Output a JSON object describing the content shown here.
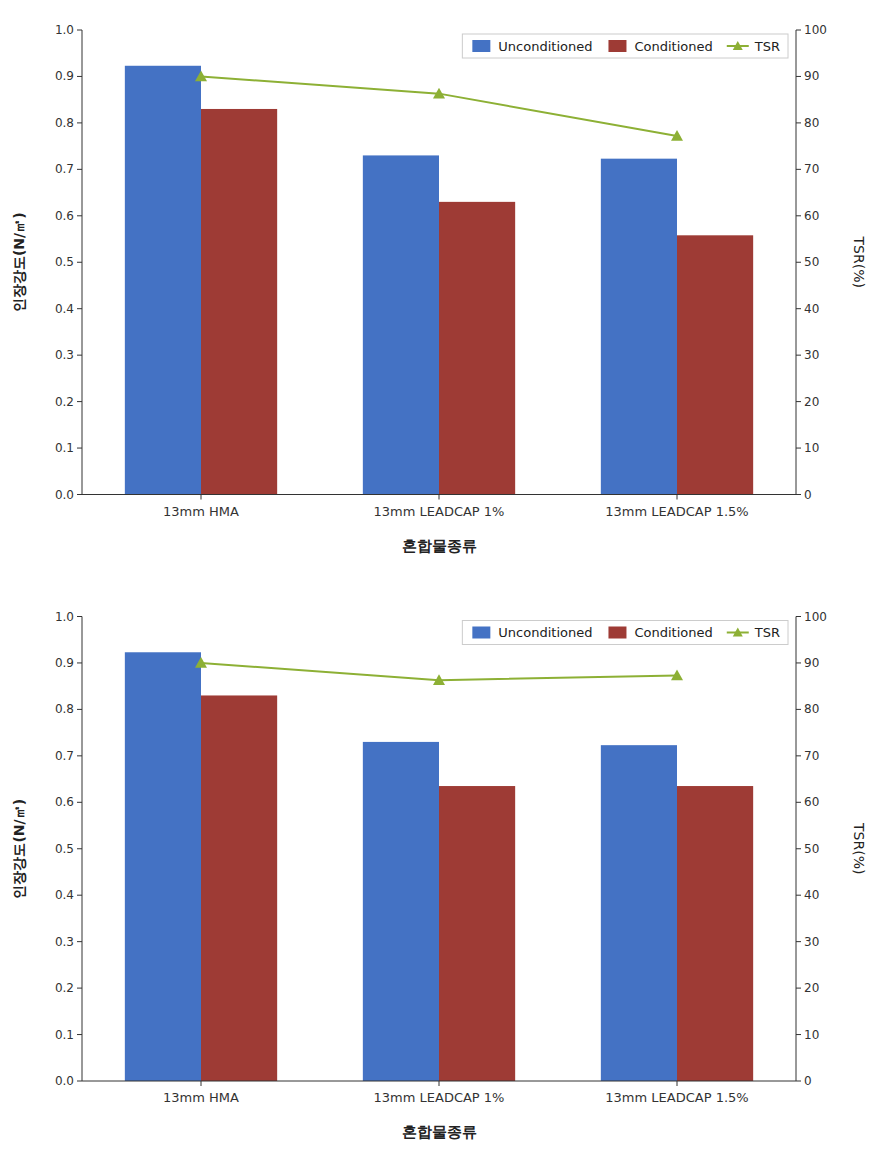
{
  "chart_data": [
    {
      "type": "bar",
      "xlabel": "혼합물종류",
      "ylabel": "인장강도(N/㎡)",
      "y2label": "TSR(%)",
      "categories": [
        "13mm HMA",
        "13mm LEADCAP 1%",
        "13mm LEADCAP 1.5%"
      ],
      "series": [
        {
          "name": "Unconditioned",
          "color": "#4472C4",
          "values": [
            0.923,
            0.73,
            0.723
          ]
        },
        {
          "name": "Conditioned",
          "color": "#9E3B35",
          "values": [
            0.83,
            0.63,
            0.558
          ]
        },
        {
          "name": "TSR",
          "type": "line",
          "axis": "y2",
          "color": "#8DB035",
          "marker": "triangle",
          "values": [
            90.0,
            86.3,
            77.2
          ]
        }
      ],
      "ylim": [
        0.0,
        1.0
      ],
      "yticks": [
        {
          "value": 0.0,
          "label": "0.0"
        },
        0.1,
        0.2,
        0.3,
        0.4,
        0.5,
        0.6,
        0.7,
        0.8,
        0.9,
        {
          "value": 1.0,
          "label": "1.0"
        }
      ],
      "y2lim": [
        0,
        100
      ],
      "y2ticks": [
        0,
        10,
        20,
        30,
        40,
        50,
        60,
        70,
        80,
        90,
        100
      ],
      "legend": "upper right",
      "grid": false
    },
    {
      "type": "bar",
      "xlabel": "혼합물종류",
      "ylabel": "인장강도(N/㎡)",
      "y2label": "TSR(%)",
      "categories": [
        "13mm HMA",
        "13mm LEADCAP 1%",
        "13mm LEADCAP 1.5%"
      ],
      "series": [
        {
          "name": "Unconditioned",
          "color": "#4472C4",
          "values": [
            0.923,
            0.73,
            0.723
          ]
        },
        {
          "name": "Conditioned",
          "color": "#9E3B35",
          "values": [
            0.83,
            0.635,
            0.635
          ]
        },
        {
          "name": "TSR",
          "type": "line",
          "axis": "y2",
          "color": "#8DB035",
          "marker": "triangle",
          "values": [
            90.0,
            86.3,
            87.3
          ]
        }
      ],
      "ylim": [
        0.0,
        1.0
      ],
      "yticks": [
        {
          "value": 0.0,
          "label": "0.0"
        },
        0.1,
        0.2,
        0.3,
        0.4,
        0.5,
        0.6,
        0.7,
        0.8,
        0.9,
        {
          "value": 1.0,
          "label": "1.0"
        }
      ],
      "y2lim": [
        0,
        100
      ],
      "y2ticks": [
        0,
        10,
        20,
        30,
        40,
        50,
        60,
        70,
        80,
        90,
        100
      ],
      "legend": "upper right",
      "grid": false
    }
  ]
}
